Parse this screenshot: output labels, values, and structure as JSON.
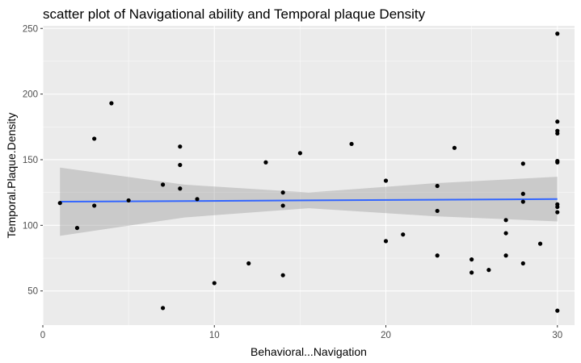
{
  "chart_data": {
    "type": "scatter",
    "title": "scatter plot of Navigational ability and Temporal plaque Density",
    "xlabel": "Behavioral...Navigation",
    "ylabel": "Temporal.Plaque.Density",
    "xlim": [
      0,
      31
    ],
    "ylim": [
      24,
      252
    ],
    "xticks": [
      0,
      10,
      20,
      30
    ],
    "yticks": [
      50,
      100,
      150,
      200,
      250
    ],
    "grid": true,
    "colors": {
      "panel": "#ebebeb",
      "grid_major": "#ffffff",
      "points": "#000000",
      "smooth_line": "#3366ff",
      "ribbon": "#999999"
    },
    "points": [
      {
        "x": 1,
        "y": 117
      },
      {
        "x": 2,
        "y": 98
      },
      {
        "x": 3,
        "y": 166
      },
      {
        "x": 3,
        "y": 115
      },
      {
        "x": 4,
        "y": 193
      },
      {
        "x": 5,
        "y": 119
      },
      {
        "x": 7,
        "y": 131
      },
      {
        "x": 7,
        "y": 37
      },
      {
        "x": 8,
        "y": 160
      },
      {
        "x": 8,
        "y": 146
      },
      {
        "x": 8,
        "y": 128
      },
      {
        "x": 9,
        "y": 120
      },
      {
        "x": 10,
        "y": 56
      },
      {
        "x": 12,
        "y": 71
      },
      {
        "x": 13,
        "y": 148
      },
      {
        "x": 14,
        "y": 125
      },
      {
        "x": 14,
        "y": 115
      },
      {
        "x": 14,
        "y": 62
      },
      {
        "x": 15,
        "y": 155
      },
      {
        "x": 18,
        "y": 162
      },
      {
        "x": 20,
        "y": 134
      },
      {
        "x": 20,
        "y": 88
      },
      {
        "x": 21,
        "y": 93
      },
      {
        "x": 23,
        "y": 130
      },
      {
        "x": 23,
        "y": 111
      },
      {
        "x": 23,
        "y": 77
      },
      {
        "x": 24,
        "y": 159
      },
      {
        "x": 25,
        "y": 74
      },
      {
        "x": 25,
        "y": 64
      },
      {
        "x": 26,
        "y": 66
      },
      {
        "x": 27,
        "y": 104
      },
      {
        "x": 27,
        "y": 94
      },
      {
        "x": 27,
        "y": 77
      },
      {
        "x": 28,
        "y": 147
      },
      {
        "x": 28,
        "y": 124
      },
      {
        "x": 28,
        "y": 118
      },
      {
        "x": 28,
        "y": 71
      },
      {
        "x": 29,
        "y": 86
      },
      {
        "x": 30,
        "y": 246
      },
      {
        "x": 30,
        "y": 179
      },
      {
        "x": 30,
        "y": 172
      },
      {
        "x": 30,
        "y": 170
      },
      {
        "x": 30,
        "y": 149
      },
      {
        "x": 30,
        "y": 148
      },
      {
        "x": 30,
        "y": 116
      },
      {
        "x": 30,
        "y": 114
      },
      {
        "x": 30,
        "y": 110
      },
      {
        "x": 30,
        "y": 35
      }
    ],
    "smooth": {
      "method": "linear fit with confidence band",
      "x": [
        1,
        8.25,
        15.5,
        22.75,
        30
      ],
      "y": [
        118,
        118.5,
        119,
        119.5,
        120
      ],
      "lower": [
        92,
        106,
        113,
        107,
        103
      ],
      "upper": [
        144,
        131,
        125,
        132,
        137
      ]
    }
  }
}
